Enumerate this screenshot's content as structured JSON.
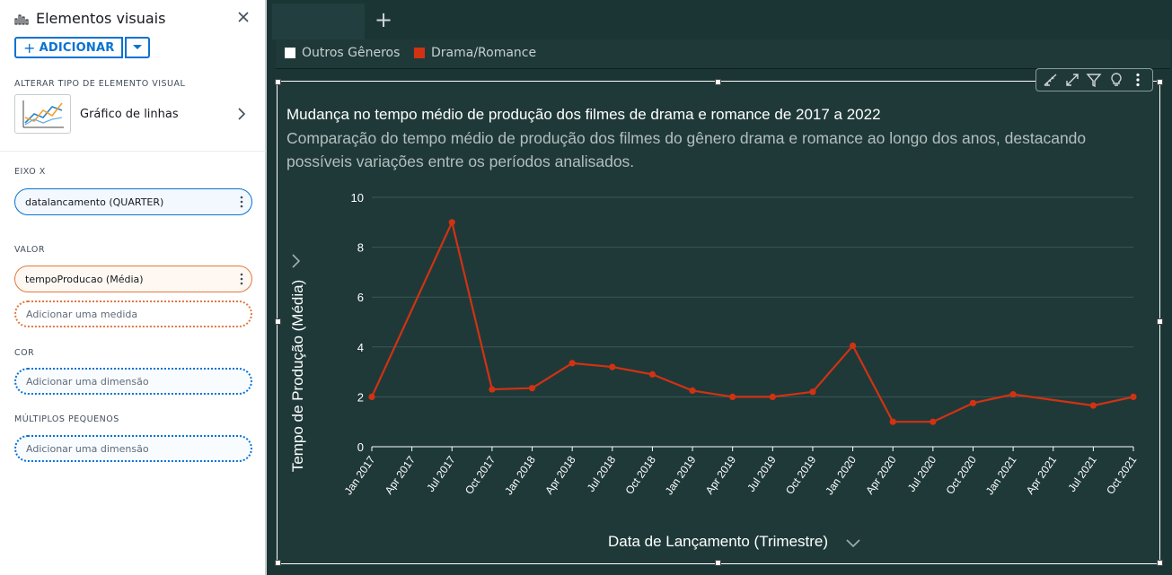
{
  "panel": {
    "title": "Elementos visuais",
    "add_label": "ADICIONAR",
    "change_type_label": "ALTERAR TIPO DE ELEMENTO VISUAL",
    "visual_type": "Gráfico de linhas",
    "x_axis_label": "EIXO X",
    "x_axis_field": "datalancamento (QUARTER)",
    "value_label": "VALOR",
    "value_field": "tempoProducao (Média)",
    "add_measure_placeholder": "Adicionar uma medida",
    "color_label": "COR",
    "color_placeholder": "Adicionar uma dimensão",
    "small_multiples_label": "MÚLTIPLOS PEQUENOS",
    "small_multiples_placeholder": "Adicionar uma dimensão"
  },
  "legend": {
    "items": [
      {
        "label": "Outros Gêneros",
        "color": "#ffffff"
      },
      {
        "label": "Drama/Romance",
        "color": "#d13212"
      }
    ]
  },
  "colors": {
    "accent": "#0972d3",
    "measure": "#e07941",
    "canvas_bg": "#1b3535",
    "card_bg": "#1f3939",
    "series": "#d13212"
  },
  "chart_data": {
    "type": "line",
    "title": "Mudança no tempo médio de produção dos filmes de drama e romance de 2017 a 2022",
    "subtitle": "Comparação do tempo médio de produção dos filmes do gênero drama e romance ao longo dos anos, destacando possíveis variações entre os períodos analisados.",
    "xlabel": "Data de Lançamento (Trimestre)",
    "ylabel": "Tempo de Produção (Média)",
    "ylim": [
      0,
      10
    ],
    "yticks": [
      0,
      2,
      4,
      6,
      8,
      10
    ],
    "grid": true,
    "categories": [
      "Jan 2017",
      "Apr 2017",
      "Jul 2017",
      "Oct 2017",
      "Jan 2018",
      "Apr 2018",
      "Jul 2018",
      "Oct 2018",
      "Jan 2019",
      "Apr 2019",
      "Jul 2019",
      "Oct 2019",
      "Jan 2020",
      "Apr 2020",
      "Jul 2020",
      "Oct 2020",
      "Jan 2021",
      "Apr 2021",
      "Jul 2021",
      "Oct 2021"
    ],
    "series": [
      {
        "name": "Drama/Romance",
        "color": "#d13212",
        "values": [
          2.0,
          null,
          9.0,
          2.3,
          2.35,
          3.35,
          3.2,
          2.9,
          2.25,
          2.0,
          2.0,
          2.2,
          4.05,
          1.0,
          1.0,
          1.75,
          2.1,
          null,
          1.65,
          2.0
        ]
      }
    ]
  }
}
